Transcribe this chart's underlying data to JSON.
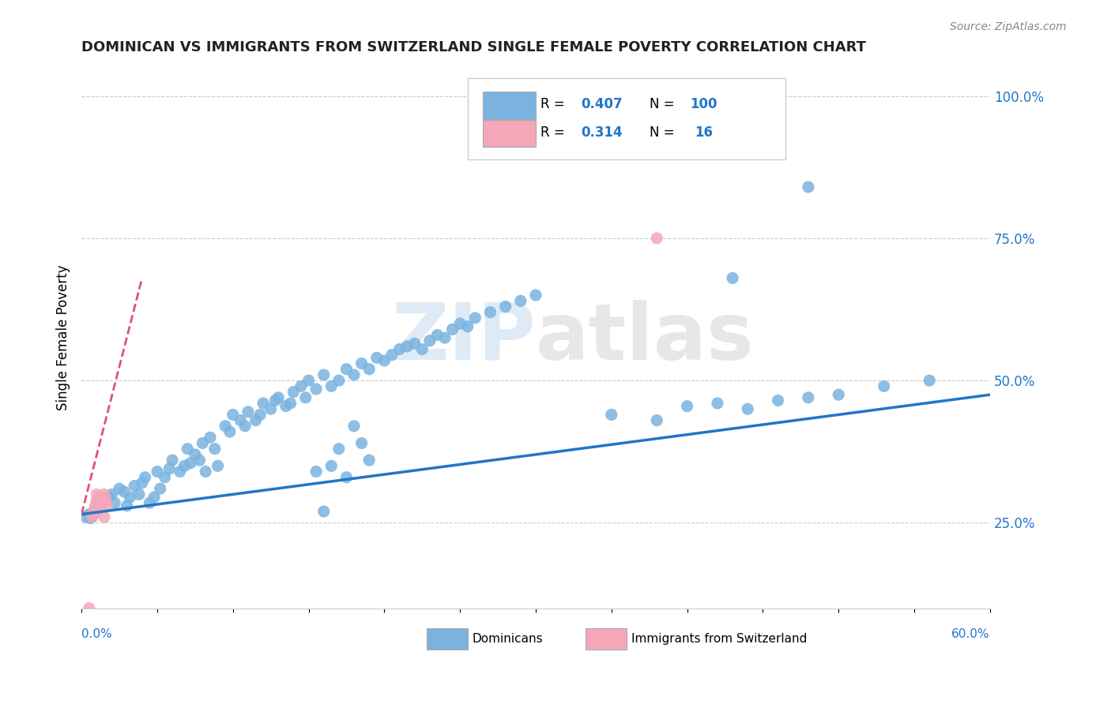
{
  "title": "DOMINICAN VS IMMIGRANTS FROM SWITZERLAND SINGLE FEMALE POVERTY CORRELATION CHART",
  "source": "Source: ZipAtlas.com",
  "ylabel": "Single Female Poverty",
  "right_yticks": [
    0.25,
    0.5,
    0.75,
    1.0
  ],
  "right_yticklabels": [
    "25.0%",
    "50.0%",
    "75.0%",
    "100.0%"
  ],
  "dominican_color": "#7ab3e0",
  "swiss_color": "#f4a7b9",
  "trend_blue": "#2176c7",
  "trend_pink": "#e05080",
  "watermark_zip": "ZIP",
  "watermark_atlas": "atlas",
  "blue_scatter": [
    [
      0.01,
      0.27
    ],
    [
      0.012,
      0.28
    ],
    [
      0.015,
      0.29
    ],
    [
      0.018,
      0.295
    ],
    [
      0.02,
      0.3
    ],
    [
      0.022,
      0.285
    ],
    [
      0.025,
      0.31
    ],
    [
      0.028,
      0.305
    ],
    [
      0.03,
      0.28
    ],
    [
      0.032,
      0.295
    ],
    [
      0.035,
      0.315
    ],
    [
      0.038,
      0.3
    ],
    [
      0.04,
      0.32
    ],
    [
      0.042,
      0.33
    ],
    [
      0.045,
      0.285
    ],
    [
      0.048,
      0.295
    ],
    [
      0.05,
      0.34
    ],
    [
      0.052,
      0.31
    ],
    [
      0.055,
      0.33
    ],
    [
      0.058,
      0.345
    ],
    [
      0.06,
      0.36
    ],
    [
      0.065,
      0.34
    ],
    [
      0.068,
      0.35
    ],
    [
      0.07,
      0.38
    ],
    [
      0.072,
      0.355
    ],
    [
      0.075,
      0.37
    ],
    [
      0.078,
      0.36
    ],
    [
      0.08,
      0.39
    ],
    [
      0.082,
      0.34
    ],
    [
      0.085,
      0.4
    ],
    [
      0.088,
      0.38
    ],
    [
      0.09,
      0.35
    ],
    [
      0.095,
      0.42
    ],
    [
      0.098,
      0.41
    ],
    [
      0.1,
      0.44
    ],
    [
      0.105,
      0.43
    ],
    [
      0.108,
      0.42
    ],
    [
      0.11,
      0.445
    ],
    [
      0.115,
      0.43
    ],
    [
      0.118,
      0.44
    ],
    [
      0.12,
      0.46
    ],
    [
      0.125,
      0.45
    ],
    [
      0.128,
      0.465
    ],
    [
      0.13,
      0.47
    ],
    [
      0.135,
      0.455
    ],
    [
      0.138,
      0.46
    ],
    [
      0.14,
      0.48
    ],
    [
      0.145,
      0.49
    ],
    [
      0.148,
      0.47
    ],
    [
      0.15,
      0.5
    ],
    [
      0.155,
      0.485
    ],
    [
      0.16,
      0.51
    ],
    [
      0.165,
      0.49
    ],
    [
      0.17,
      0.5
    ],
    [
      0.175,
      0.52
    ],
    [
      0.18,
      0.51
    ],
    [
      0.185,
      0.53
    ],
    [
      0.19,
      0.52
    ],
    [
      0.195,
      0.54
    ],
    [
      0.2,
      0.535
    ],
    [
      0.205,
      0.545
    ],
    [
      0.21,
      0.555
    ],
    [
      0.215,
      0.56
    ],
    [
      0.22,
      0.565
    ],
    [
      0.225,
      0.555
    ],
    [
      0.23,
      0.57
    ],
    [
      0.235,
      0.58
    ],
    [
      0.24,
      0.575
    ],
    [
      0.245,
      0.59
    ],
    [
      0.25,
      0.6
    ],
    [
      0.255,
      0.595
    ],
    [
      0.26,
      0.61
    ],
    [
      0.27,
      0.62
    ],
    [
      0.28,
      0.63
    ],
    [
      0.29,
      0.64
    ],
    [
      0.3,
      0.65
    ],
    [
      0.003,
      0.26
    ],
    [
      0.005,
      0.265
    ],
    [
      0.006,
      0.258
    ],
    [
      0.007,
      0.262
    ],
    [
      0.155,
      0.34
    ],
    [
      0.16,
      0.27
    ],
    [
      0.165,
      0.35
    ],
    [
      0.17,
      0.38
    ],
    [
      0.175,
      0.33
    ],
    [
      0.18,
      0.42
    ],
    [
      0.185,
      0.39
    ],
    [
      0.19,
      0.36
    ],
    [
      0.35,
      0.44
    ],
    [
      0.38,
      0.43
    ],
    [
      0.4,
      0.455
    ],
    [
      0.42,
      0.46
    ],
    [
      0.44,
      0.45
    ],
    [
      0.46,
      0.465
    ],
    [
      0.48,
      0.47
    ],
    [
      0.5,
      0.475
    ],
    [
      0.53,
      0.49
    ],
    [
      0.56,
      0.5
    ],
    [
      0.43,
      0.68
    ],
    [
      0.48,
      0.84
    ]
  ],
  "pink_scatter": [
    [
      0.005,
      0.1
    ],
    [
      0.007,
      0.26
    ],
    [
      0.008,
      0.27
    ],
    [
      0.009,
      0.28
    ],
    [
      0.01,
      0.29
    ],
    [
      0.01,
      0.3
    ],
    [
      0.011,
      0.27
    ],
    [
      0.011,
      0.29
    ],
    [
      0.012,
      0.295
    ],
    [
      0.013,
      0.28
    ],
    [
      0.014,
      0.285
    ],
    [
      0.015,
      0.26
    ],
    [
      0.015,
      0.3
    ],
    [
      0.016,
      0.29
    ],
    [
      0.017,
      0.28
    ],
    [
      0.38,
      0.75
    ]
  ],
  "xlim": [
    0.0,
    0.6
  ],
  "ylim": [
    0.1,
    1.05
  ],
  "blue_trend_x": [
    0.0,
    0.6
  ],
  "blue_trend_y": [
    0.265,
    0.475
  ],
  "pink_trend_x": [
    0.0,
    0.04
  ],
  "pink_trend_y": [
    0.265,
    0.68
  ],
  "legend_r1": "0.407",
  "legend_n1": "100",
  "legend_r2": "0.314",
  "legend_n2": "16"
}
